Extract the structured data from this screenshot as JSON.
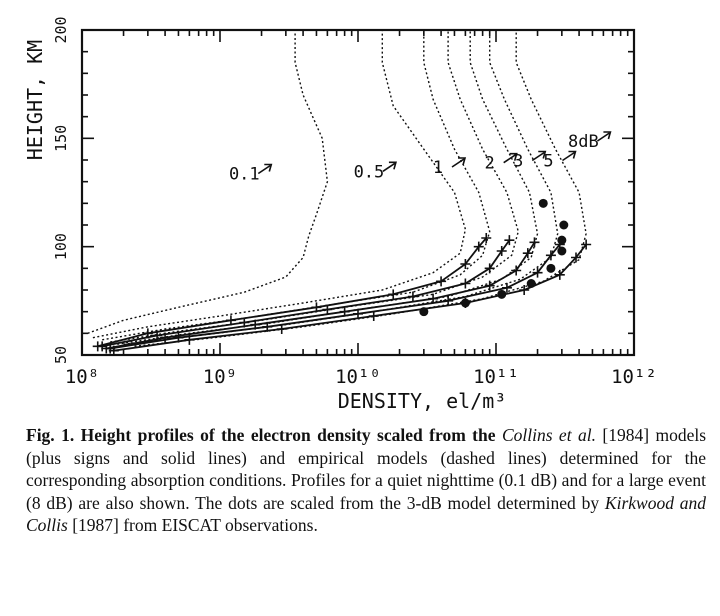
{
  "chart_data": {
    "type": "line",
    "title": "",
    "xlabel": "DENSITY,   el/m³",
    "ylabel": "HEIGHT, KM",
    "xscale": "log",
    "xlim": [
      100000000.0,
      1000000000000.0
    ],
    "ylim": [
      50,
      200
    ],
    "x_ticks": [
      {
        "value": 100000000.0,
        "label": "10⁸"
      },
      {
        "value": 1000000000.0,
        "label": "10⁹"
      },
      {
        "value": 10000000000.0,
        "label": "10¹⁰"
      },
      {
        "value": 100000000000.0,
        "label": "10¹¹"
      },
      {
        "value": 1000000000000.0,
        "label": "10¹²"
      }
    ],
    "y_ticks": [
      {
        "value": 50,
        "label": "50"
      },
      {
        "value": 100,
        "label": "100"
      },
      {
        "value": 150,
        "label": "150"
      },
      {
        "value": 200,
        "label": "200"
      }
    ],
    "series": [
      {
        "name": "0.1",
        "style": "dashed",
        "points": [
          [
            110000000.0,
            60
          ],
          [
            200000000.0,
            66
          ],
          [
            500000000.0,
            72
          ],
          [
            1500000000.0,
            79
          ],
          [
            3000000000.0,
            86
          ],
          [
            4000000000.0,
            95
          ],
          [
            4400000000.0,
            105
          ],
          [
            5000000000.0,
            115
          ],
          [
            6000000000.0,
            130
          ],
          [
            5500000000.0,
            150
          ],
          [
            4000000000.0,
            170
          ],
          [
            3500000000.0,
            185
          ],
          [
            3500000000.0,
            200
          ]
        ]
      },
      {
        "name": "0.5",
        "style": "dashed",
        "points": [
          [
            120000000.0,
            58
          ],
          [
            300000000.0,
            63
          ],
          [
            1000000000.0,
            68
          ],
          [
            4000000000.0,
            74
          ],
          [
            15000000000.0,
            80
          ],
          [
            35000000000.0,
            88
          ],
          [
            55000000000.0,
            97
          ],
          [
            60000000000.0,
            108
          ],
          [
            50000000000.0,
            125
          ],
          [
            30000000000.0,
            145
          ],
          [
            18000000000.0,
            165
          ],
          [
            15000000000.0,
            185
          ],
          [
            15000000000.0,
            200
          ]
        ]
      },
      {
        "name": "1",
        "style": "dashed",
        "points": [
          [
            140000000.0,
            57
          ],
          [
            400000000.0,
            62
          ],
          [
            1500000000.0,
            67
          ],
          [
            6000000000.0,
            73
          ],
          [
            25000000000.0,
            79
          ],
          [
            55000000000.0,
            87
          ],
          [
            80000000000.0,
            96
          ],
          [
            90000000000.0,
            107
          ],
          [
            75000000000.0,
            125
          ],
          [
            50000000000.0,
            145
          ],
          [
            35000000000.0,
            168
          ],
          [
            30000000000.0,
            185
          ],
          [
            30000000000.0,
            200
          ]
        ]
      },
      {
        "name": "2",
        "style": "dashed",
        "points": [
          [
            160000000.0,
            56
          ],
          [
            500000000.0,
            61
          ],
          [
            2000000000.0,
            66
          ],
          [
            8000000000.0,
            72
          ],
          [
            35000000000.0,
            78
          ],
          [
            80000000000.0,
            86
          ],
          [
            130000000000.0,
            96
          ],
          [
            145000000000.0,
            107
          ],
          [
            120000000000.0,
            125
          ],
          [
            80000000000.0,
            145
          ],
          [
            55000000000.0,
            168
          ],
          [
            45000000000.0,
            185
          ],
          [
            45000000000.0,
            200
          ]
        ]
      },
      {
        "name": "3",
        "style": "dashed",
        "points": [
          [
            180000000.0,
            55
          ],
          [
            600000000.0,
            60
          ],
          [
            2500000000.0,
            65
          ],
          [
            10000000000.0,
            71
          ],
          [
            45000000000.0,
            77
          ],
          [
            110000000000.0,
            85
          ],
          [
            180000000000.0,
            95
          ],
          [
            200000000000.0,
            106
          ],
          [
            175000000000.0,
            125
          ],
          [
            120000000000.0,
            145
          ],
          [
            80000000000.0,
            168
          ],
          [
            65000000000.0,
            185
          ],
          [
            65000000000.0,
            200
          ]
        ]
      },
      {
        "name": "5",
        "style": "dashed",
        "points": [
          [
            200000000.0,
            55
          ],
          [
            700000000.0,
            59
          ],
          [
            3000000000.0,
            64
          ],
          [
            13000000000.0,
            70
          ],
          [
            60000000000.0,
            77
          ],
          [
            150000000000.0,
            85
          ],
          [
            250000000000.0,
            95
          ],
          [
            280000000000.0,
            106
          ],
          [
            250000000000.0,
            125
          ],
          [
            170000000000.0,
            145
          ],
          [
            115000000000.0,
            168
          ],
          [
            90000000000.0,
            185
          ],
          [
            90000000000.0,
            200
          ]
        ]
      },
      {
        "name": "8dB",
        "style": "dashed",
        "points": [
          [
            240000000.0,
            54
          ],
          [
            900000000.0,
            58
          ],
          [
            4000000000.0,
            63
          ],
          [
            18000000000.0,
            69
          ],
          [
            80000000000.0,
            76
          ],
          [
            220000000000.0,
            84
          ],
          [
            400000000000.0,
            94
          ],
          [
            450000000000.0,
            106
          ],
          [
            400000000000.0,
            125
          ],
          [
            270000000000.0,
            145
          ],
          [
            180000000000.0,
            168
          ],
          [
            140000000000.0,
            185
          ],
          [
            140000000000.0,
            200
          ]
        ]
      },
      {
        "name": "",
        "style": "solid",
        "markers": "plus",
        "points": [
          [
            130000000.0,
            54
          ],
          [
            300000000.0,
            60
          ],
          [
            1200000000.0,
            66
          ],
          [
            5000000000.0,
            72
          ],
          [
            18000000000.0,
            78
          ],
          [
            40000000000.0,
            84
          ],
          [
            60000000000.0,
            92
          ],
          [
            75000000000.0,
            100
          ],
          [
            85000000000.0,
            104
          ]
        ]
      },
      {
        "name": "",
        "style": "solid",
        "markers": "plus",
        "points": [
          [
            140000000.0,
            54
          ],
          [
            350000000.0,
            59
          ],
          [
            1500000000.0,
            65
          ],
          [
            6000000000.0,
            71
          ],
          [
            25000000000.0,
            77
          ],
          [
            60000000000.0,
            83
          ],
          [
            90000000000.0,
            90
          ],
          [
            110000000000.0,
            98
          ],
          [
            125000000000.0,
            103
          ]
        ]
      },
      {
        "name": "",
        "style": "solid",
        "markers": "plus",
        "points": [
          [
            150000000.0,
            53
          ],
          [
            400000000.0,
            58
          ],
          [
            1800000000.0,
            64
          ],
          [
            8000000000.0,
            70
          ],
          [
            35000000000.0,
            76
          ],
          [
            90000000000.0,
            82
          ],
          [
            140000000000.0,
            89
          ],
          [
            170000000000.0,
            97
          ],
          [
            190000000000.0,
            102
          ]
        ]
      },
      {
        "name": "",
        "style": "solid",
        "markers": "plus",
        "points": [
          [
            160000000.0,
            53
          ],
          [
            500000000.0,
            58
          ],
          [
            2200000000.0,
            63
          ],
          [
            10000000000.0,
            69
          ],
          [
            45000000000.0,
            75
          ],
          [
            120000000000.0,
            81
          ],
          [
            200000000000.0,
            88
          ],
          [
            250000000000.0,
            96
          ],
          [
            290000000000.0,
            101
          ]
        ]
      },
      {
        "name": "",
        "style": "solid",
        "markers": "plus",
        "points": [
          [
            170000000.0,
            52
          ],
          [
            600000000.0,
            57
          ],
          [
            2800000000.0,
            62
          ],
          [
            13000000000.0,
            68
          ],
          [
            60000000000.0,
            74
          ],
          [
            160000000000.0,
            80
          ],
          [
            290000000000.0,
            87
          ],
          [
            380000000000.0,
            95
          ],
          [
            450000000000.0,
            101
          ]
        ]
      }
    ],
    "dots": [
      [
        220000000000.0,
        120
      ],
      [
        310000000000.0,
        110
      ],
      [
        300000000000.0,
        103
      ],
      [
        300000000000.0,
        98
      ],
      [
        250000000000.0,
        90
      ],
      [
        180000000000.0,
        83
      ],
      [
        110000000000.0,
        78
      ],
      [
        60000000000.0,
        74
      ],
      [
        30000000000.0,
        70
      ]
    ],
    "curve_labels": [
      {
        "text": "0.1",
        "x": 1500000000.0,
        "y": 131
      },
      {
        "text": "0.5",
        "x": 12000000000.0,
        "y": 132
      },
      {
        "text": "1",
        "x": 38000000000.0,
        "y": 134
      },
      {
        "text": "2",
        "x": 90000000000.0,
        "y": 136
      },
      {
        "text": "3",
        "x": 145000000000.0,
        "y": 137
      },
      {
        "text": "5",
        "x": 240000000000.0,
        "y": 137
      },
      {
        "text": "8dB",
        "x": 430000000000.0,
        "y": 146
      }
    ]
  },
  "caption": {
    "lead": "Fig. 1.  Height profiles of the electron density scaled from the",
    "authors1": "Collins et al.",
    "text1": " [1984] models (plus signs and solid lines) and empirical models (dashed lines) determined for the corresponding absorption conditions. Profiles for a quiet nighttime (0.1 dB) and for a large event (8 dB) are also shown. The dots are scaled from the 3-dB model determined by ",
    "authors2": "Kirkwood and Collis",
    "text2": " [1987] from EISCAT observations."
  }
}
